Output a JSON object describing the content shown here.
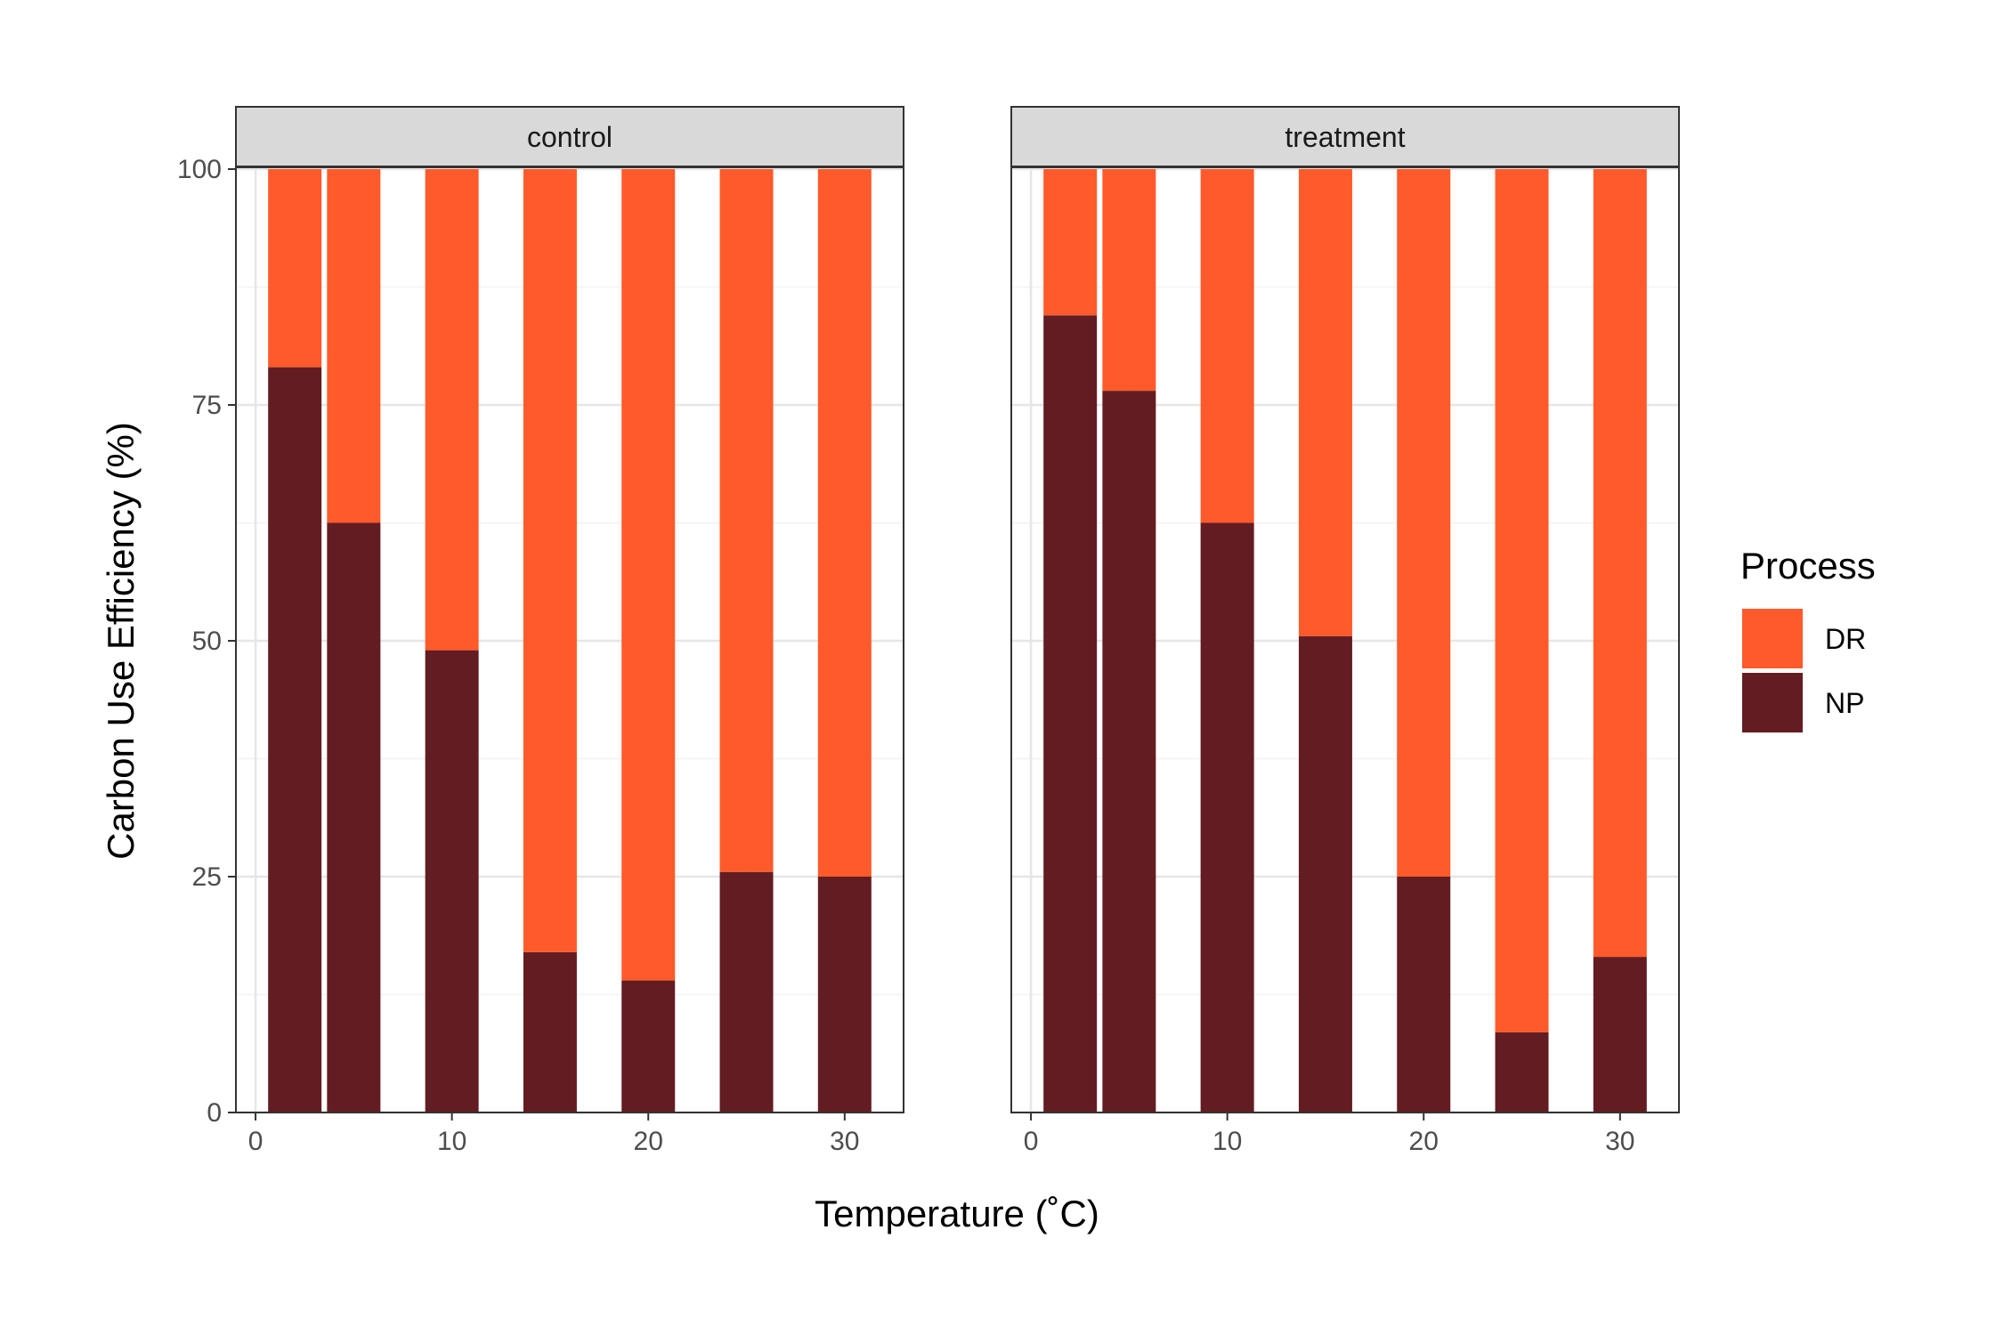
{
  "chart_data": {
    "type": "bar",
    "stacked": true,
    "xlabel": "Temperature (˚C)",
    "ylabel": "Carbon Use Efficiency (%)",
    "xlim": [
      -1,
      33
    ],
    "ylim": [
      0,
      100
    ],
    "x_ticks": [
      0,
      10,
      20,
      30
    ],
    "y_ticks": [
      0,
      25,
      50,
      75,
      100
    ],
    "grid": true,
    "legend": {
      "title": "Process",
      "position": "right",
      "entries": [
        {
          "name": "DR",
          "color": "#FF5A2B"
        },
        {
          "name": "NP",
          "color": "#631D22"
        }
      ]
    },
    "stack_order": [
      "NP",
      "DR"
    ],
    "panels": [
      {
        "facet": "control",
        "x": [
          2,
          5,
          10,
          15,
          20,
          25,
          30
        ],
        "series": [
          {
            "name": "NP",
            "values": [
              79,
              62.5,
              49,
              17,
              14,
              25.5,
              25
            ]
          },
          {
            "name": "DR",
            "values": [
              21,
              37.5,
              51,
              83,
              86,
              74.5,
              75
            ]
          }
        ]
      },
      {
        "facet": "treatment",
        "x": [
          2,
          5,
          10,
          15,
          20,
          25,
          30
        ],
        "series": [
          {
            "name": "NP",
            "values": [
              84.5,
              76.5,
              62.5,
              50.5,
              25,
              8.5,
              16.5
            ]
          },
          {
            "name": "DR",
            "values": [
              15.5,
              23.5,
              37.5,
              49.5,
              75,
              91.5,
              83.5
            ]
          }
        ]
      }
    ]
  }
}
